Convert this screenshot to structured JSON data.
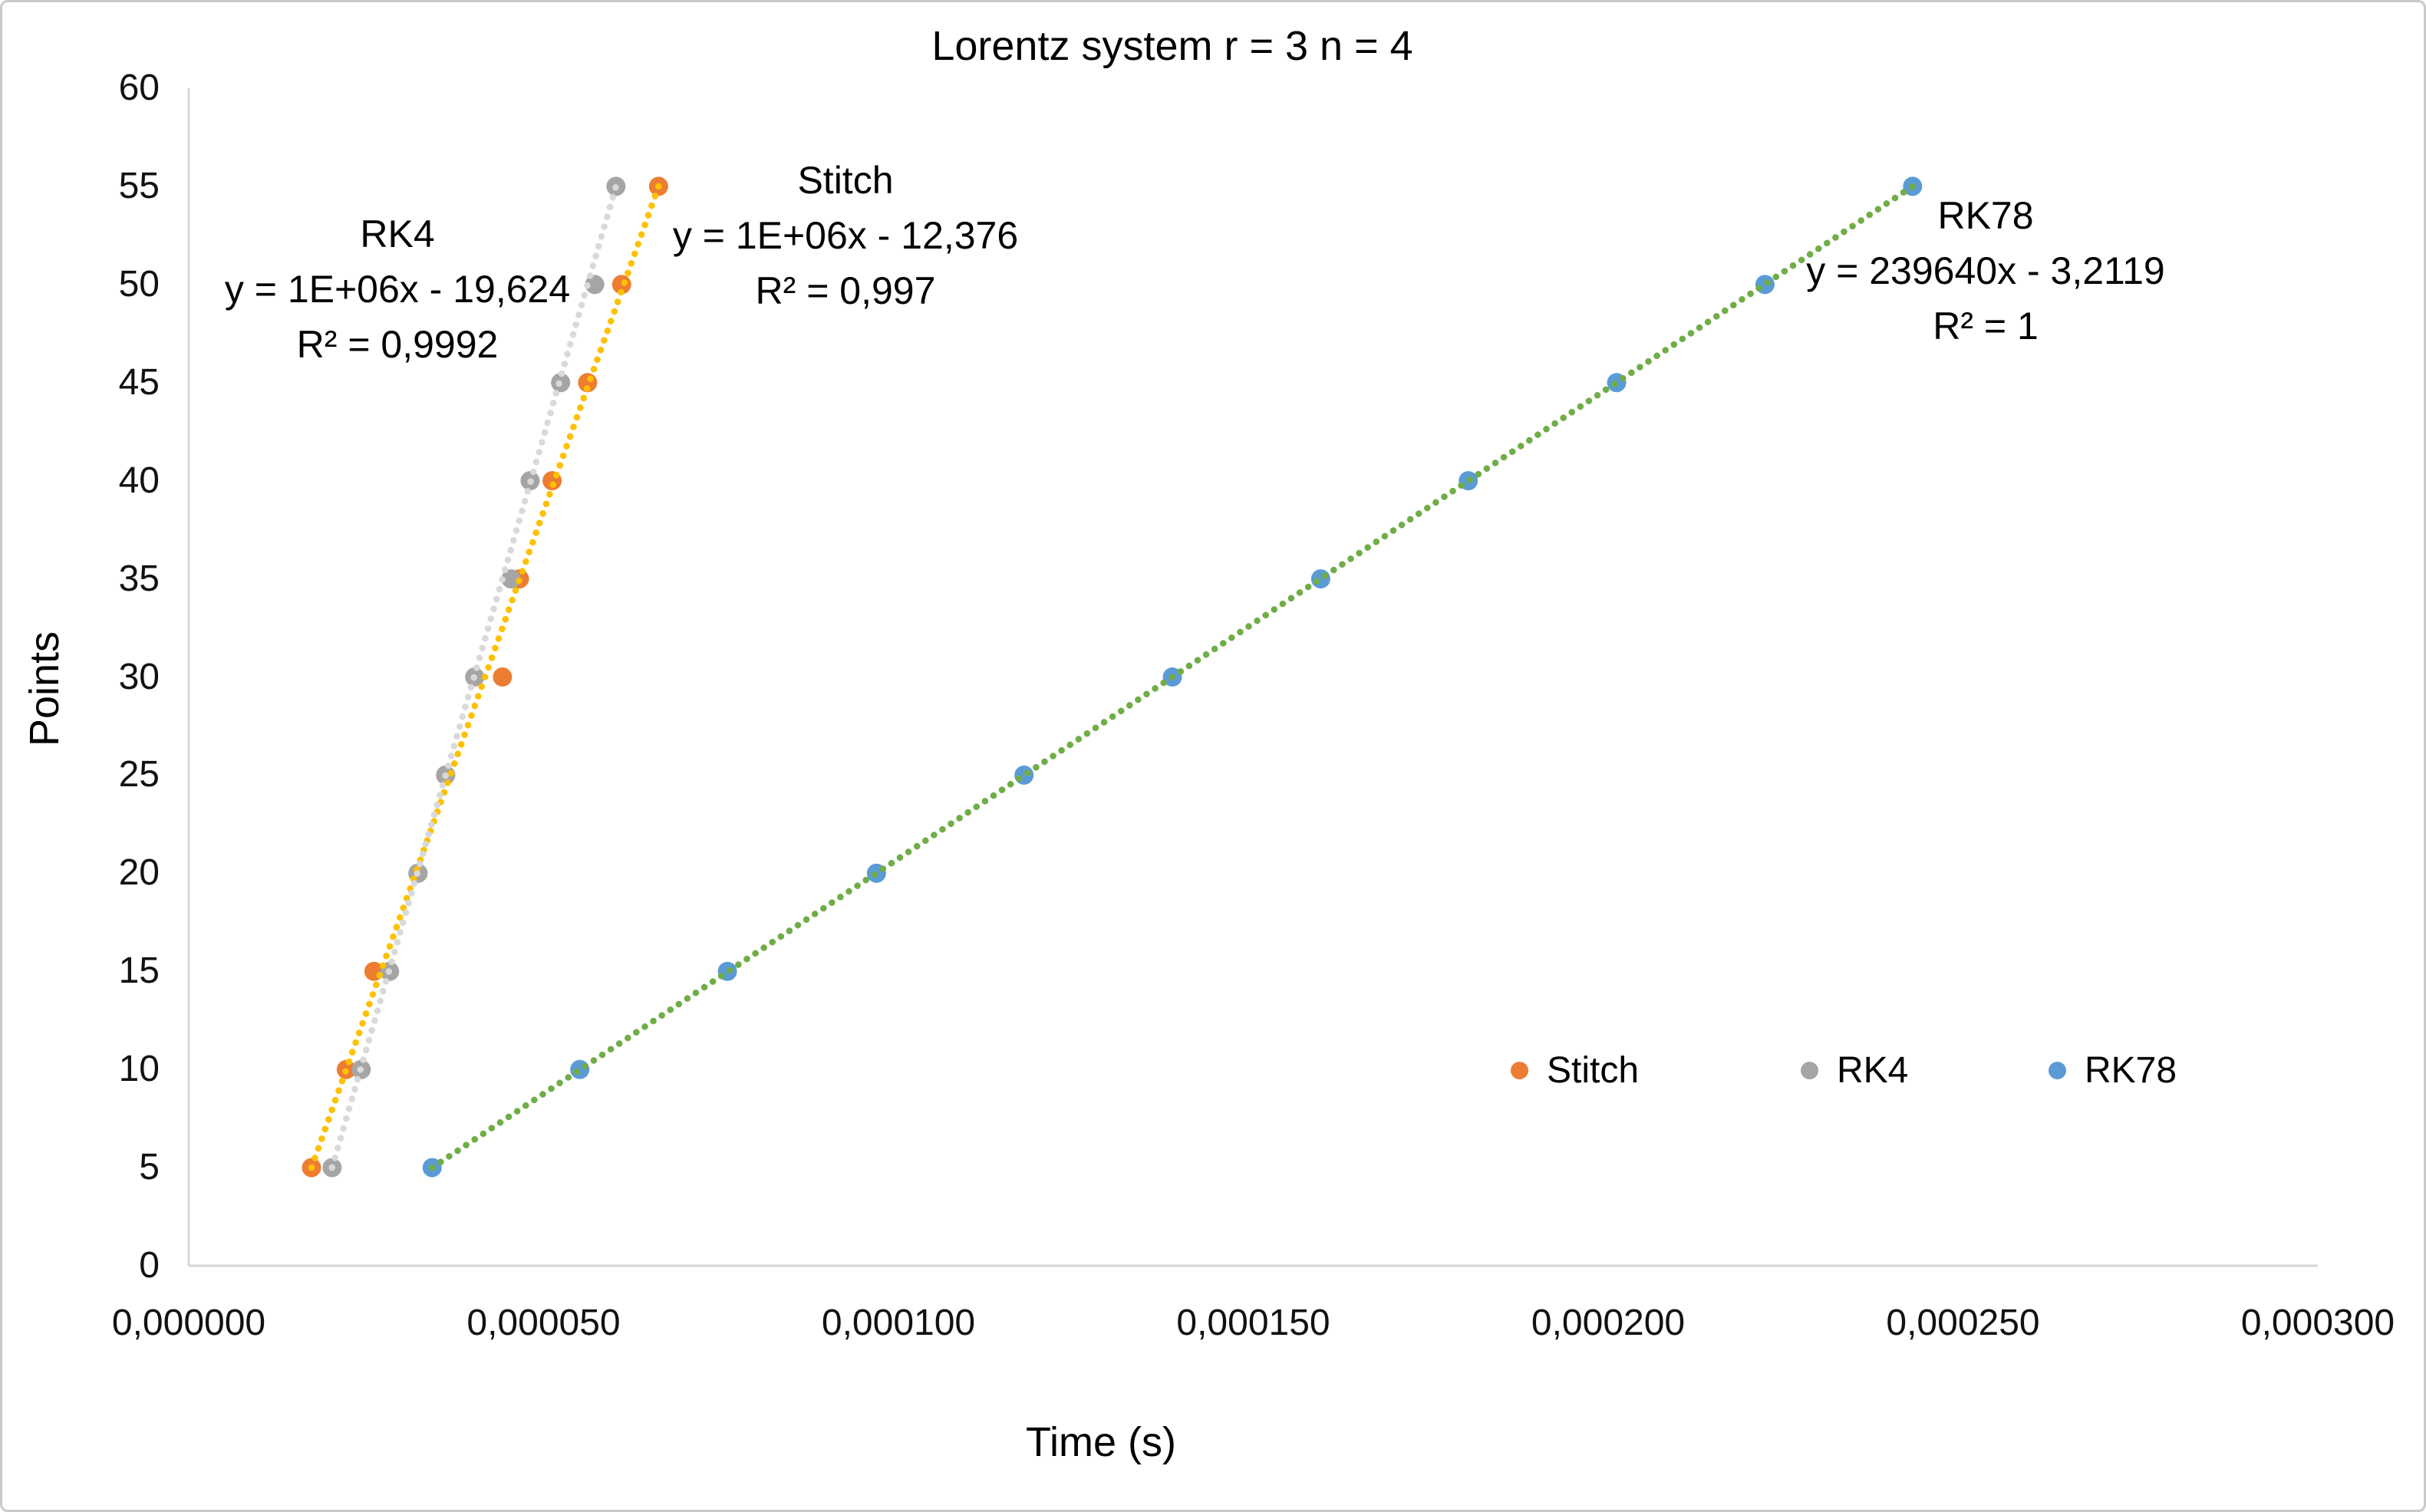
{
  "title": "Lorentz system r = 3 n = 4",
  "axes": {
    "x_label": "Time (s)",
    "y_label": "Points"
  },
  "chart_data": {
    "type": "scatter",
    "title": "Lorentz system r = 3 n = 4",
    "xlabel": "Time (s)",
    "ylabel": "Points",
    "xlim": [
      0,
      0.0003
    ],
    "ylim": [
      0,
      60
    ],
    "grid": false,
    "legend_position": "inside-lower-right-row",
    "x_ticks": {
      "values": [
        0,
        5e-05,
        0.0001,
        0.00015,
        0.0002,
        0.00025,
        0.0003
      ],
      "labels": [
        "0,000000",
        "0,000050",
        "0,000100",
        "0,000150",
        "0,000200",
        "0,000250",
        "0,000300"
      ]
    },
    "y_ticks": {
      "values": [
        0,
        5,
        10,
        15,
        20,
        25,
        30,
        35,
        40,
        45,
        50,
        55,
        60
      ],
      "labels": [
        "0",
        "5",
        "10",
        "15",
        "20",
        "25",
        "30",
        "35",
        "40",
        "45",
        "50",
        "55",
        "60"
      ]
    },
    "series": [
      {
        "name": "Stitch",
        "marker_color": "#ED7D31",
        "trend_color": "#FFC000",
        "trendline": {
          "title": "Stitch",
          "equation": "y = 1E+06x - 12,376",
          "r2": "R² = 0,997"
        },
        "y": [
          5,
          10,
          15,
          20,
          25,
          30,
          35,
          40,
          45,
          50,
          55
        ],
        "x": [
          1.73e-05,
          2.22e-05,
          2.61e-05,
          3.23e-05,
          3.62e-05,
          4.42e-05,
          4.66e-05,
          5.12e-05,
          5.62e-05,
          6.1e-05,
          6.62e-05
        ]
      },
      {
        "name": "RK4",
        "marker_color": "#A5A5A5",
        "trend_color": "#D9D9D9",
        "trendline": {
          "title": "RK4",
          "equation": "y = 1E+06x - 19,624",
          "r2": "R² = 0,9992"
        },
        "y": [
          5,
          10,
          15,
          20,
          25,
          30,
          35,
          40,
          45,
          50,
          55
        ],
        "x": [
          2.02e-05,
          2.43e-05,
          2.83e-05,
          3.23e-05,
          3.62e-05,
          4.03e-05,
          4.54e-05,
          4.81e-05,
          5.24e-05,
          5.72e-05,
          6.02e-05
        ]
      },
      {
        "name": "RK78",
        "marker_color": "#5B9BD5",
        "trend_color": "#70AD47",
        "trendline": {
          "title": "RK78",
          "equation": "y = 239640x - 3,2119",
          "r2": "R² = 1"
        },
        "y": [
          5,
          10,
          15,
          20,
          25,
          30,
          35,
          40,
          45,
          50,
          55
        ],
        "x": [
          3.43e-05,
          5.51e-05,
          7.59e-05,
          9.69e-05,
          0.0001177,
          0.0001386,
          0.0001595,
          0.0001803,
          0.0002012,
          0.0002221,
          0.0002429
        ]
      }
    ],
    "colors": {
      "axis_line": "#D6D6D6",
      "tick_text": "#111111",
      "title_text": "#000000"
    }
  }
}
